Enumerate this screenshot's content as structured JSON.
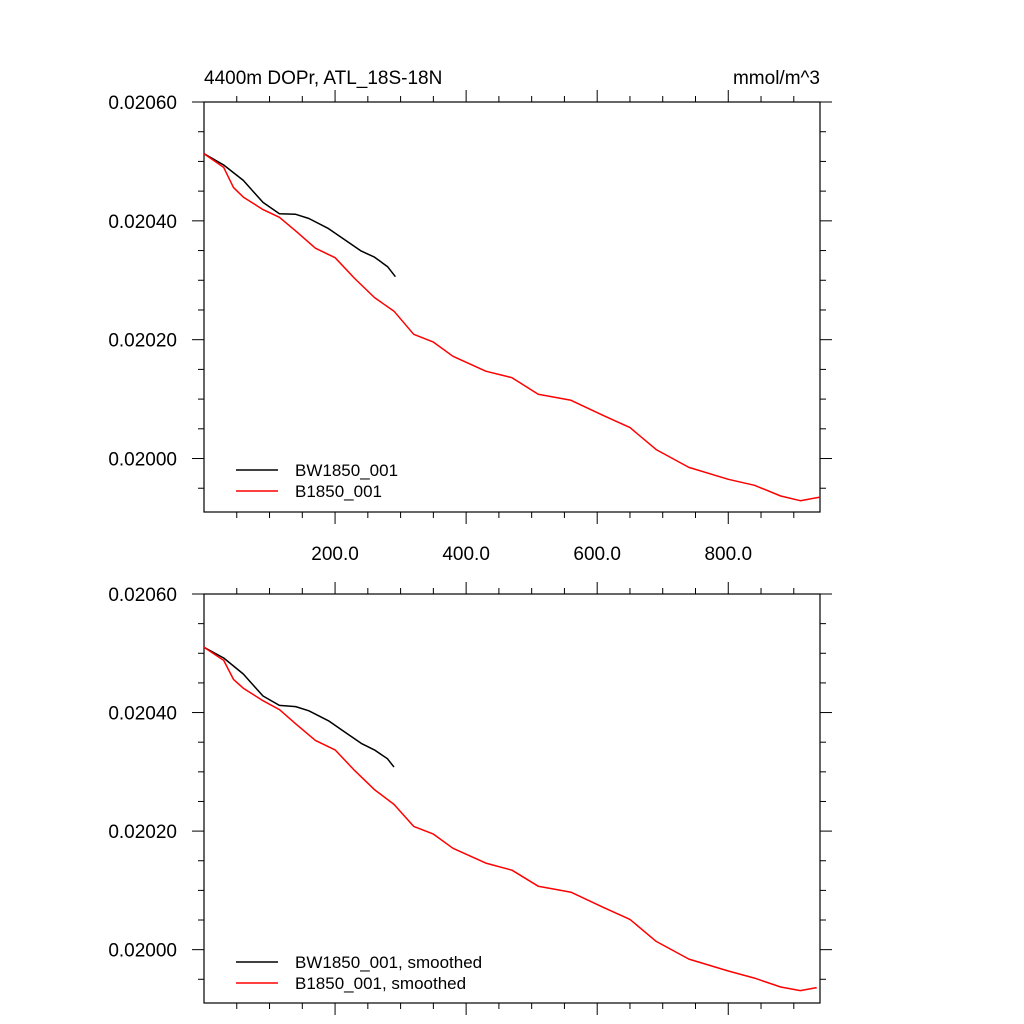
{
  "chart_data": [
    {
      "type": "line",
      "title_left": "4400m DOPr, ATL_18S-18N",
      "title_right": "mmol/m^3",
      "xlabel": "",
      "ylabel": "",
      "xlim": [
        0,
        940
      ],
      "ylim": [
        0.01991,
        0.0206
      ],
      "x_ticks": [
        200,
        400,
        600,
        800
      ],
      "x_tick_labels": [
        "200.0",
        "400.0",
        "600.0",
        "800.0"
      ],
      "show_x_tick_labels": true,
      "y_ticks": [
        0.02,
        0.0202,
        0.0204,
        0.0206
      ],
      "y_tick_labels": [
        "0.02000",
        "0.02020",
        "0.02040",
        "0.02060"
      ],
      "legend_position": "bottom-left",
      "series": [
        {
          "name": "BW1850_001",
          "color": "#000000",
          "points": [
            [
              0,
              0.020513
            ],
            [
              30,
              0.020494
            ],
            [
              60,
              0.020468
            ],
            [
              90,
              0.020431
            ],
            [
              115,
              0.020412
            ],
            [
              140,
              0.020411
            ],
            [
              160,
              0.020404
            ],
            [
              190,
              0.020387
            ],
            [
              215,
              0.020368
            ],
            [
              240,
              0.020349
            ],
            [
              260,
              0.020339
            ],
            [
              280,
              0.020323
            ],
            [
              292,
              0.020306
            ]
          ]
        },
        {
          "name": "B1850_001",
          "color": "#ff0000",
          "points": [
            [
              0,
              0.020513
            ],
            [
              30,
              0.02049
            ],
            [
              45,
              0.020456
            ],
            [
              60,
              0.02044
            ],
            [
              90,
              0.020419
            ],
            [
              115,
              0.020406
            ],
            [
              140,
              0.020383
            ],
            [
              170,
              0.020354
            ],
            [
              200,
              0.020338
            ],
            [
              230,
              0.020303
            ],
            [
              260,
              0.020271
            ],
            [
              290,
              0.020248
            ],
            [
              320,
              0.020209
            ],
            [
              350,
              0.020196
            ],
            [
              380,
              0.020172
            ],
            [
              430,
              0.020147
            ],
            [
              470,
              0.020136
            ],
            [
              510,
              0.020108
            ],
            [
              560,
              0.020098
            ],
            [
              610,
              0.020072
            ],
            [
              650,
              0.020052
            ],
            [
              690,
              0.020015
            ],
            [
              740,
              0.019985
            ],
            [
              800,
              0.019965
            ],
            [
              840,
              0.019955
            ],
            [
              880,
              0.019937
            ],
            [
              910,
              0.019929
            ],
            [
              940,
              0.019935
            ]
          ]
        }
      ]
    },
    {
      "type": "line",
      "title_left": "",
      "title_right": "",
      "xlabel": "",
      "ylabel": "",
      "xlim": [
        0,
        940
      ],
      "ylim": [
        0.01991,
        0.0206
      ],
      "x_ticks": [
        200,
        400,
        600,
        800
      ],
      "x_tick_labels": [],
      "show_x_tick_labels": false,
      "y_ticks": [
        0.02,
        0.0202,
        0.0204,
        0.0206
      ],
      "y_tick_labels": [
        "0.02000",
        "0.02020",
        "0.02040",
        "0.02060"
      ],
      "legend_position": "bottom-left",
      "series": [
        {
          "name": "BW1850_001, smoothed",
          "color": "#000000",
          "points": [
            [
              0,
              0.02051
            ],
            [
              30,
              0.020492
            ],
            [
              60,
              0.020465
            ],
            [
              90,
              0.020428
            ],
            [
              115,
              0.020412
            ],
            [
              140,
              0.02041
            ],
            [
              160,
              0.020403
            ],
            [
              190,
              0.020386
            ],
            [
              215,
              0.020367
            ],
            [
              240,
              0.020348
            ],
            [
              260,
              0.020337
            ],
            [
              280,
              0.020322
            ],
            [
              290,
              0.020308
            ]
          ]
        },
        {
          "name": "B1850_001, smoothed",
          "color": "#ff0000",
          "points": [
            [
              0,
              0.02051
            ],
            [
              30,
              0.020488
            ],
            [
              45,
              0.020456
            ],
            [
              60,
              0.020441
            ],
            [
              90,
              0.02042
            ],
            [
              115,
              0.020405
            ],
            [
              140,
              0.020381
            ],
            [
              170,
              0.020353
            ],
            [
              200,
              0.020337
            ],
            [
              230,
              0.020302
            ],
            [
              260,
              0.02027
            ],
            [
              290,
              0.020245
            ],
            [
              320,
              0.020208
            ],
            [
              350,
              0.020195
            ],
            [
              380,
              0.020171
            ],
            [
              430,
              0.020146
            ],
            [
              470,
              0.020134
            ],
            [
              510,
              0.020107
            ],
            [
              560,
              0.020097
            ],
            [
              610,
              0.020071
            ],
            [
              650,
              0.020051
            ],
            [
              690,
              0.020014
            ],
            [
              740,
              0.019984
            ],
            [
              800,
              0.019964
            ],
            [
              840,
              0.019952
            ],
            [
              880,
              0.019937
            ],
            [
              910,
              0.019931
            ],
            [
              935,
              0.019936
            ]
          ]
        }
      ]
    }
  ]
}
